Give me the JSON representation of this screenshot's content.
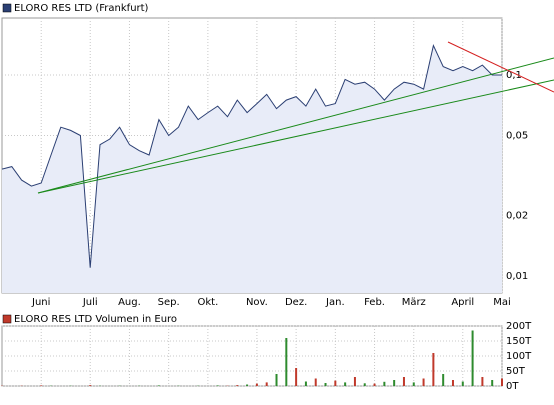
{
  "chart_data": [
    {
      "type": "area",
      "log_scale": true,
      "grid": true,
      "categories": [
        null,
        null,
        null,
        null,
        "Juni",
        null,
        null,
        null,
        null,
        "Juli",
        null,
        null,
        null,
        "Aug.",
        null,
        null,
        null,
        "Sep.",
        null,
        null,
        null,
        "Okt.",
        null,
        null,
        null,
        null,
        "Nov.",
        null,
        null,
        null,
        "Dez.",
        null,
        null,
        null,
        "Jan.",
        null,
        null,
        null,
        "Feb.",
        null,
        null,
        null,
        "März",
        null,
        null,
        null,
        null,
        "April",
        null,
        null,
        null,
        "Mai"
      ],
      "series": [
        {
          "name": "ELORO RES LTD (Frankfurt)",
          "color": "#2b3f73",
          "values": [
            0.034,
            0.035,
            0.03,
            0.028,
            0.029,
            0.04,
            0.055,
            0.053,
            0.05,
            0.011,
            0.045,
            0.048,
            0.055,
            0.045,
            0.042,
            0.04,
            0.06,
            0.05,
            0.055,
            0.07,
            0.06,
            0.065,
            0.07,
            0.062,
            0.075,
            0.065,
            0.072,
            0.08,
            0.068,
            0.075,
            0.078,
            0.07,
            0.085,
            0.07,
            0.072,
            0.095,
            0.09,
            0.092,
            0.085,
            0.075,
            0.085,
            0.092,
            0.09,
            0.085,
            0.14,
            0.11,
            0.105,
            0.11,
            0.105,
            0.112,
            0.1,
            0.1
          ]
        }
      ],
      "ylim": [
        0.00823,
        0.192
      ],
      "yticks": [
        {
          "value": 0.01,
          "label": "0,01"
        },
        {
          "value": 0.02,
          "label": "0,02"
        },
        {
          "value": 0.05,
          "label": "0,05"
        },
        {
          "value": 0.1,
          "label": "0,1"
        }
      ]
    },
    {
      "type": "bar",
      "grid": true,
      "series": [
        {
          "name": "ELORO RES LTD Volumen in Euro",
          "color": "#c0392b",
          "values": [
            1000,
            0,
            1000,
            0,
            2000,
            1000,
            0,
            1000,
            0,
            3000,
            1000,
            0,
            1000,
            0,
            1000,
            0,
            2000,
            0,
            1000,
            0,
            1000,
            0,
            2000,
            1000,
            3000,
            5000,
            8000,
            12000,
            40000,
            160000,
            60000,
            15000,
            25000,
            10000,
            18000,
            12000,
            30000,
            9000,
            8000,
            14000,
            20000,
            30000,
            12000,
            25000,
            110000,
            40000,
            20000,
            15000,
            185000,
            30000,
            20000,
            25000
          ],
          "bar_colors": [
            "#c0392b",
            "#2e8b2e",
            "#c0392b",
            "#2e8b2e",
            "#c0392b",
            "#2e8b2e",
            "#c0392b",
            "#2e8b2e",
            "#c0392b",
            "#c0392b",
            "#2e8b2e",
            "#c0392b",
            "#2e8b2e",
            "#c0392b",
            "#2e8b2e",
            "#c0392b",
            "#2e8b2e",
            "#c0392b",
            "#2e8b2e",
            "#c0392b",
            "#2e8b2e",
            "#c0392b",
            "#2e8b2e",
            "#c0392b",
            "#c0392b",
            "#2e8b2e",
            "#c0392b",
            "#c0392b",
            "#2e8b2e",
            "#2e8b2e",
            "#c0392b",
            "#2e8b2e",
            "#c0392b",
            "#2e8b2e",
            "#c0392b",
            "#2e8b2e",
            "#c0392b",
            "#2e8b2e",
            "#c0392b",
            "#2e8b2e",
            "#2e8b2e",
            "#c0392b",
            "#2e8b2e",
            "#c0392b",
            "#c0392b",
            "#2e8b2e",
            "#c0392b",
            "#2e8b2e",
            "#2e8b2e",
            "#c0392b",
            "#2e8b2e",
            "#c0392b"
          ]
        }
      ],
      "ylim": [
        0,
        200000
      ],
      "yticks": [
        {
          "value": 0,
          "label": "0T"
        },
        {
          "value": 50000,
          "label": "50T"
        },
        {
          "value": 100000,
          "label": "100T"
        },
        {
          "value": 150000,
          "label": "150T"
        },
        {
          "value": 200000,
          "label": "200T"
        }
      ]
    }
  ]
}
